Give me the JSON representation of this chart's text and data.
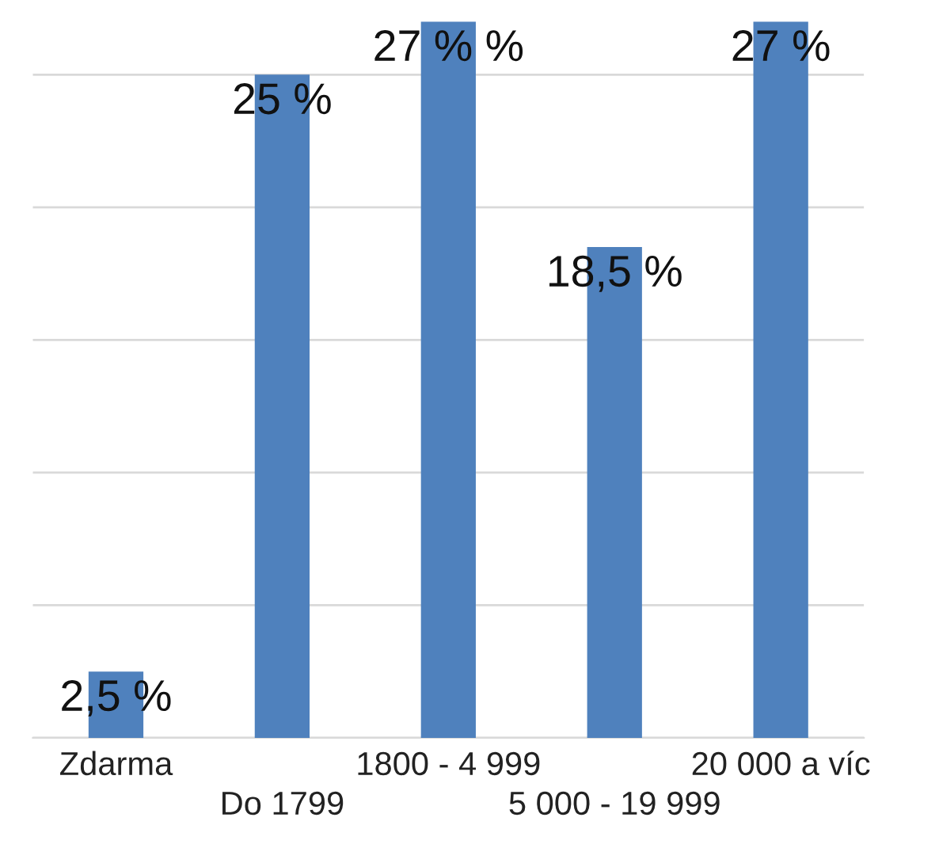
{
  "chart_data": {
    "type": "bar",
    "categories": [
      "Zdarma",
      "Do 1799",
      "1800 - 4 999",
      "5 000 - 19 999",
      "20 000 a víc"
    ],
    "values": [
      2.5,
      25,
      27,
      18.5,
      27
    ],
    "value_labels": [
      "2,5 %",
      "25 %",
      "27 % %",
      "18,5 %",
      "27 %"
    ],
    "color": "#4f81bd",
    "ylim": [
      0,
      27
    ],
    "yticks": [
      {
        "value": 0,
        "label": null
      },
      {
        "value": 5,
        "label": null
      },
      {
        "value": 10,
        "label": null
      },
      {
        "value": 15,
        "label": null
      },
      {
        "value": 20,
        "label": null
      },
      {
        "value": 25,
        "label": null
      }
    ],
    "grid": "y",
    "tick_labels": "x"
  }
}
